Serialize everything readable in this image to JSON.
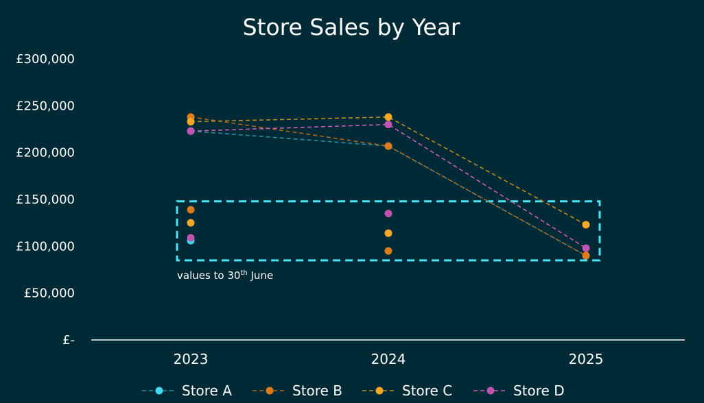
{
  "chart_data": {
    "type": "line",
    "title": "Store Sales by Year",
    "xlabel": "",
    "ylabel": "",
    "categories": [
      "2023",
      "2024",
      "2025"
    ],
    "ylim": [
      0,
      300000
    ],
    "y_ticks": [
      {
        "value": 0,
        "label": "£-"
      },
      {
        "value": 50000,
        "label": "£50,000"
      },
      {
        "value": 100000,
        "label": "£100,000"
      },
      {
        "value": 150000,
        "label": "£150,000"
      },
      {
        "value": 200000,
        "label": "£200,000"
      },
      {
        "value": 250000,
        "label": "£250,000"
      },
      {
        "value": 300000,
        "label": "£300,000"
      }
    ],
    "grid": false,
    "legend_position": "bottom",
    "series": [
      {
        "name": "Store A",
        "color": "#3fd9f0",
        "values": [
          223000,
          207000,
          90000
        ],
        "half_year_values": [
          106000,
          null,
          null
        ]
      },
      {
        "name": "Store B",
        "color": "#e07b1a",
        "values": [
          238000,
          207000,
          90000
        ],
        "half_year_values": [
          139000,
          95000,
          null
        ]
      },
      {
        "name": "Store C",
        "color": "#f9a825",
        "values": [
          233000,
          238000,
          123000
        ],
        "half_year_values": [
          125000,
          114000,
          null
        ]
      },
      {
        "name": "Store D",
        "color": "#c054b0",
        "values": [
          223000,
          230000,
          98000
        ],
        "half_year_values": [
          109000,
          135000,
          null
        ]
      }
    ],
    "annotation": {
      "text_main": "values to 30",
      "text_sup": "th",
      "text_end": " June",
      "box_color": "#4ee6f5",
      "y_range": [
        85000,
        148000
      ]
    }
  }
}
